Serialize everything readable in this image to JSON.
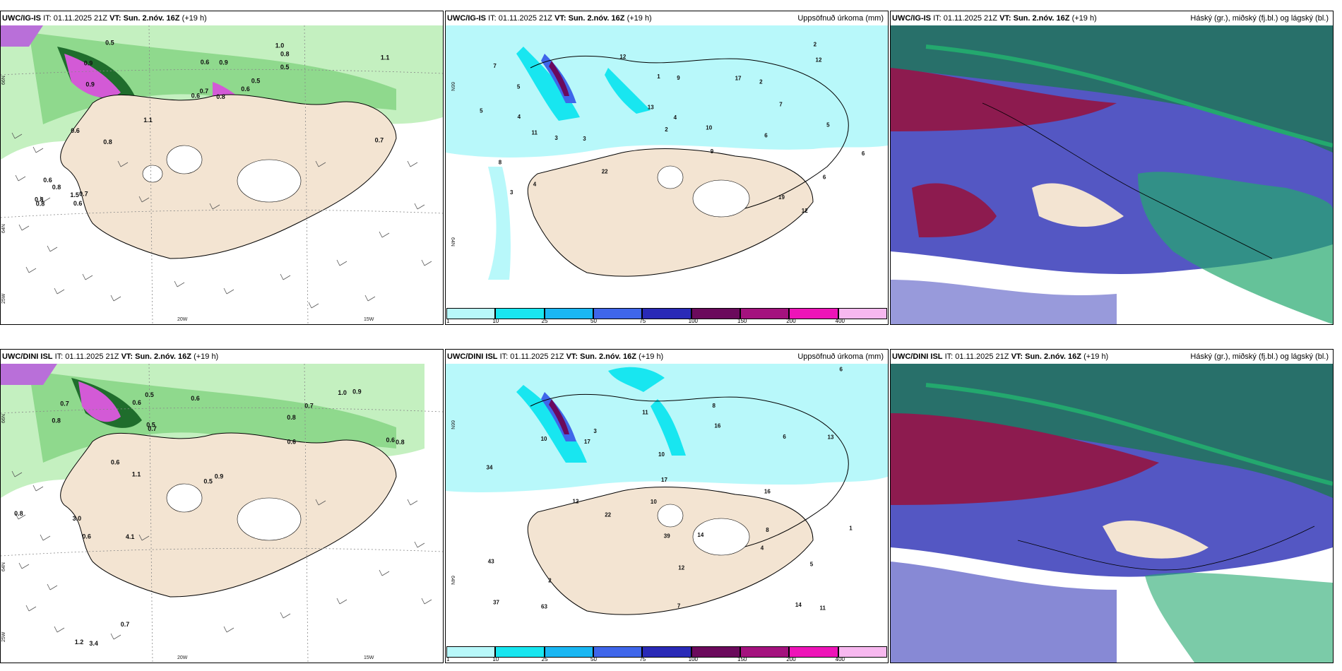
{
  "panels": [
    {
      "id": "p1",
      "model": "UWC/IG-IS",
      "it_label": "IT:",
      "it": "01.11.2025 21Z",
      "vt_label": "VT:",
      "vt": "Sun. 2.nóv. 16Z",
      "lead": "(+19 h)",
      "right_title": ""
    },
    {
      "id": "p2",
      "model": "UWC/IG-IS",
      "it_label": "IT:",
      "it": "01.11.2025 21Z",
      "vt_label": "VT:",
      "vt": "Sun. 2.nóv. 16Z",
      "lead": "(+19 h)",
      "right_title": "Uppsöfnuð úrkoma (mm)"
    },
    {
      "id": "p3",
      "model": "UWC/IG-IS",
      "it_label": "IT:",
      "it": "01.11.2025 21Z",
      "vt_label": "VT:",
      "vt": "Sun. 2.nóv. 16Z",
      "lead": "(+19 h)",
      "right_title": "Háský (gr.), miðský (fj.bl.) og lágský (bl.)"
    },
    {
      "id": "p4",
      "model": "UWC/DINI ISL",
      "it_label": "IT:",
      "it": "01.11.2025 21Z",
      "vt_label": "VT:",
      "vt": "Sun. 2.nóv. 16Z",
      "lead": "(+19 h)",
      "right_title": ""
    },
    {
      "id": "p5",
      "model": "UWC/DINI ISL",
      "it_label": "IT:",
      "it": "01.11.2025 21Z",
      "vt_label": "VT:",
      "vt": "Sun. 2.nóv. 16Z",
      "lead": "(+19 h)",
      "right_title": "Uppsöfnuð úrkoma (mm)"
    },
    {
      "id": "p6",
      "model": "UWC/DINI ISL",
      "it_label": "IT:",
      "it": "01.11.2025 21Z",
      "vt_label": "VT:",
      "vt": "Sun. 2.nóv. 16Z",
      "lead": "(+19 h)",
      "right_title": "Háský (gr.), miðský (fj.bl.) og lágský (bl.)"
    }
  ],
  "wind_map": {
    "lat_labels": [
      "66N",
      "64N",
      "25W"
    ],
    "lon_labels": [
      "20W",
      "15W"
    ],
    "top_values": [
      "0.8",
      "0.9",
      "0.7",
      "0.6",
      "0.5",
      "1.1",
      "1.0",
      "0.9",
      "0.8",
      "0.6",
      "0.5",
      "0.7",
      "0.9",
      "1.1",
      "0.6",
      "0.5",
      "0.8",
      "0.6"
    ],
    "bottom_values": [
      "0.7",
      "0.6",
      "0.8",
      "0.9",
      "1.0",
      "0.5",
      "0.6",
      "0.7",
      "0.9",
      "0.8",
      "0.6",
      "0.5",
      "0.7",
      "0.6",
      "0.8",
      "1.1",
      "0.5",
      "0.6"
    ],
    "lower_left_top": [
      "1.5",
      "0.7",
      "0.8",
      "0.6",
      "0.8",
      "0.6",
      "0.8"
    ],
    "lower_left_bottom": [
      "0.6",
      "0.7",
      "0.8",
      "4.1",
      "1.2",
      "3.0",
      "3.4"
    ],
    "colors": {
      "land": "#f3e4d2",
      "green_light": "#c4f0c0",
      "green_mid": "#8fd98d",
      "green_dark": "#1f6d2c",
      "purple": "#d35ad6"
    }
  },
  "precip_map": {
    "legend_values": [
      "1",
      "10",
      "25",
      "50",
      "75",
      "100",
      "150",
      "200",
      "400"
    ],
    "legend_colors": [
      "#b8f8fa",
      "#18e6f0",
      "#1ab7f3",
      "#3f66ea",
      "#2a2ab7",
      "#6b0a5c",
      "#a4127e",
      "#ee14b8",
      "#f7b8ef"
    ],
    "lat_labels": [
      "66N",
      "64N"
    ],
    "top_values": [
      "12",
      "11",
      "9",
      "7",
      "6",
      "5",
      "4",
      "3",
      "2",
      "1",
      "17",
      "19",
      "22",
      "12",
      "10",
      "8",
      "6",
      "4",
      "5",
      "3",
      "2",
      "9",
      "7",
      "6",
      "5",
      "4",
      "3",
      "2",
      "13",
      "12"
    ],
    "bottom_values": [
      "10",
      "11",
      "8",
      "7",
      "16",
      "10",
      "22",
      "17",
      "14",
      "12",
      "11",
      "10",
      "8",
      "6",
      "5",
      "4",
      "3",
      "2",
      "1",
      "13",
      "12",
      "16",
      "34",
      "63",
      "43",
      "37",
      "39",
      "14",
      "17",
      "6"
    ],
    "colors": {
      "sea": "#b8f8fa",
      "land": "#f3e4d2"
    }
  },
  "cloud_map": {
    "colors": {
      "high_green": "#23a86e",
      "mid_red": "#8d1b4f",
      "low_blue": "#5457c3",
      "teal": "#28706a",
      "land": "#f3e4d2"
    }
  }
}
